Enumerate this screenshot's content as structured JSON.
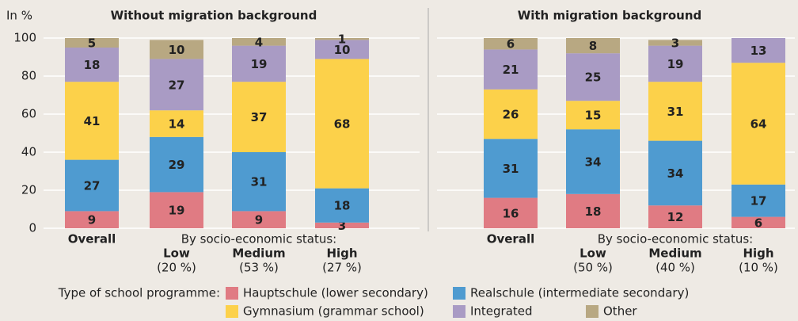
{
  "y_axis_label": "In %",
  "legend_title": "Type of school programme:",
  "chart_data": [
    {
      "type": "stacked_bar",
      "title": "Without migration background",
      "group_label": "By socio-economic status:",
      "categories": [
        "Overall",
        "Low",
        "Medium",
        "High"
      ],
      "category_shares": [
        null,
        "(20 %)",
        "(53 %)",
        "(27 %)"
      ],
      "ylim": [
        0,
        100
      ],
      "yticks": [
        0,
        20,
        40,
        60,
        80,
        100
      ],
      "grid": true,
      "series": [
        {
          "name": "Hauptschule (lower secondary)",
          "color": "#e07b83",
          "values": [
            9,
            19,
            9,
            3
          ]
        },
        {
          "name": "Realschule (intermediate secondary)",
          "color": "#4f9bd0",
          "values": [
            27,
            29,
            31,
            18
          ]
        },
        {
          "name": "Gymnasium (grammar school)",
          "color": "#fcd14a",
          "values": [
            41,
            14,
            37,
            68
          ]
        },
        {
          "name": "Integrated",
          "color": "#a99bc4",
          "values": [
            18,
            27,
            19,
            10
          ]
        },
        {
          "name": "Other",
          "color": "#b8a882",
          "values": [
            5,
            10,
            4,
            1
          ]
        }
      ]
    },
    {
      "type": "stacked_bar",
      "title": "With migration background",
      "group_label": "By socio-economic status:",
      "categories": [
        "Overall",
        "Low",
        "Medium",
        "High"
      ],
      "category_shares": [
        null,
        "(50 %)",
        "(40 %)",
        "(10 %)"
      ],
      "ylim": [
        0,
        100
      ],
      "series": [
        {
          "values": [
            16,
            18,
            12,
            6
          ]
        },
        {
          "values": [
            31,
            34,
            34,
            17
          ]
        },
        {
          "values": [
            26,
            15,
            31,
            64
          ]
        },
        {
          "values": [
            21,
            25,
            19,
            13
          ]
        },
        {
          "values": [
            6,
            8,
            3,
            null
          ]
        }
      ]
    }
  ]
}
